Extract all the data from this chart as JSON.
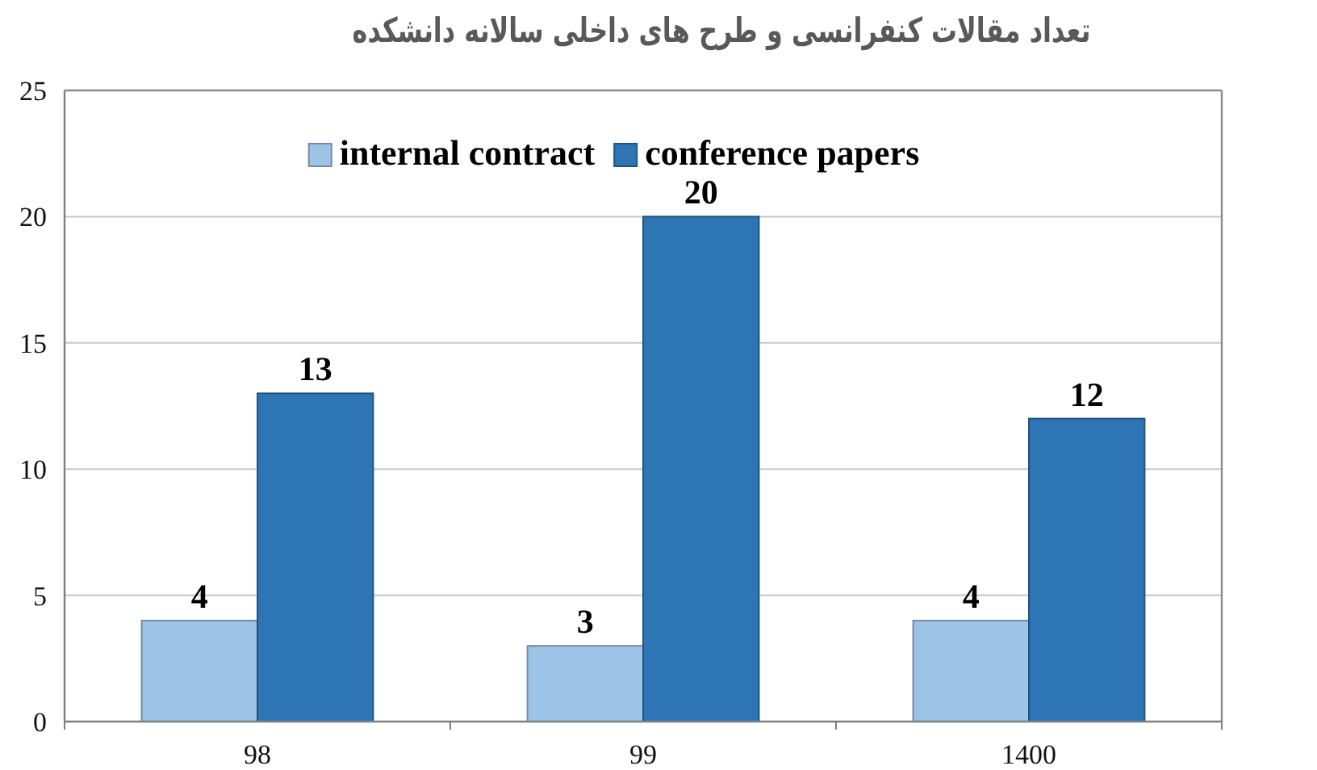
{
  "chart_data": {
    "type": "bar",
    "title": "تعداد مقالات کنفرانسی و طرح های داخلی سالانه دانشکده",
    "categories": [
      "98",
      "99",
      "1400"
    ],
    "series": [
      {
        "name": "internal contract",
        "color": "#9dc3e6",
        "values": [
          4,
          3,
          4
        ]
      },
      {
        "name": "conference papers",
        "color": "#2e75b6",
        "values": [
          13,
          20,
          12
        ]
      }
    ],
    "ylim": [
      0,
      25
    ],
    "yticks": [
      0,
      5,
      10,
      15,
      20,
      25
    ],
    "grid": "y",
    "legend": "top",
    "data_labels": true
  }
}
